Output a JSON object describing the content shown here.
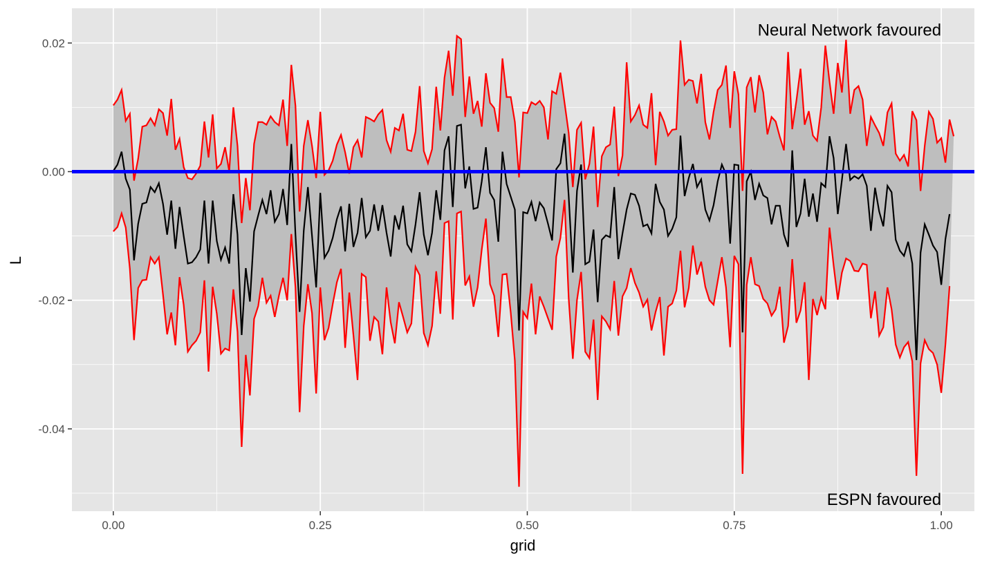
{
  "colors": {
    "panel_background": "#e5e5e5",
    "grid_major": "#ffffff",
    "ribbon_fill": "#bebebe",
    "bound_lines": "#ff0000",
    "estimate_line": "#000000",
    "reference_line": "#0000ff"
  },
  "chart_data": {
    "type": "line",
    "xlabel": "grid",
    "ylabel": "L",
    "xlim": [
      -0.05,
      1.04
    ],
    "ylim": [
      -0.0528,
      0.0254
    ],
    "x_ticks": [
      0,
      0.25,
      0.5,
      0.75,
      1
    ],
    "x_tick_labels": [
      "0.00",
      "0.25",
      "0.50",
      "0.75",
      "1.00"
    ],
    "y_ticks": [
      -0.04,
      -0.02,
      0,
      0.02
    ],
    "y_tick_labels": [
      "-0.04",
      "-0.02",
      "0.00",
      "0.02"
    ],
    "grid": true,
    "reference_line": {
      "y": 0
    },
    "annotations": [
      {
        "text": "Neural Network favoured",
        "x": 1.0,
        "y": 0.022
      },
      {
        "text": "ESPN favoured",
        "x": 1.0,
        "y": -0.051
      }
    ],
    "x_step": 0.005,
    "series": [
      {
        "role": "upper",
        "color": "#ff0000",
        "x_start": 0,
        "values": [
          0.0103,
          0.0112,
          0.0127,
          0.0079,
          0.009,
          -0.0014,
          0.002,
          0.007,
          0.0072,
          0.0083,
          0.0072,
          0.0097,
          0.0091,
          0.0056,
          0.0113,
          0.0034,
          0.0051,
          0.0007,
          -0.001,
          -0.0012,
          -0.0003,
          0.0009,
          0.0078,
          0.0022,
          0.0089,
          0.0005,
          0.0012,
          0.0038,
          0.0,
          0.01,
          0.004,
          -0.008,
          -0.001,
          -0.006,
          0.0043,
          0.0077,
          0.0077,
          0.0073,
          0.0086,
          0.0077,
          0.0072,
          0.0112,
          0.004,
          0.0166,
          0.0102,
          -0.0062,
          0.004,
          0.008,
          0.004,
          -0.001,
          0.0093,
          -0.0005,
          0.0002,
          0.0017,
          0.0042,
          0.0057,
          0.003,
          -0.0003,
          0.0038,
          0.0049,
          0.0022,
          0.0085,
          0.0082,
          0.0078,
          0.0089,
          0.0096,
          0.0049,
          0.0031,
          0.0068,
          0.0064,
          0.009,
          0.0034,
          0.0032,
          0.0062,
          0.0133,
          0.0032,
          0.0013,
          0.0035,
          0.0132,
          0.0064,
          0.0146,
          0.0188,
          0.0118,
          0.0211,
          0.0206,
          0.0085,
          0.0148,
          0.009,
          0.011,
          0.007,
          0.0153,
          0.0107,
          0.0099,
          0.0062,
          0.0176,
          0.0116,
          0.0116,
          0.0077,
          -0.0009,
          0.0092,
          0.0091,
          0.0108,
          0.0104,
          0.011,
          0.01,
          0.005,
          0.0125,
          0.0121,
          0.0154,
          0.0107,
          0.006,
          -0.0024,
          0.0065,
          0.0076,
          -0.0012,
          0.0012,
          0.007,
          -0.0055,
          0.0024,
          0.0038,
          0.0042,
          0.0101,
          -0.0007,
          0.0025,
          0.017,
          0.0078,
          0.0088,
          0.0103,
          0.0073,
          0.0068,
          0.0122,
          0.001,
          0.0093,
          0.0078,
          0.0056,
          0.0065,
          0.0066,
          0.0204,
          0.0135,
          0.0143,
          0.0141,
          0.0106,
          0.0152,
          0.0077,
          0.005,
          0.0093,
          0.0127,
          0.0135,
          0.0165,
          0.0068,
          0.0156,
          0.012,
          -0.003,
          0.0131,
          0.0147,
          0.0092,
          0.015,
          0.0123,
          0.0058,
          0.0085,
          0.0078,
          0.0054,
          0.0033,
          0.0186,
          0.0066,
          0.011,
          0.016,
          0.0073,
          0.0094,
          0.0056,
          0.0048,
          0.01,
          0.0196,
          0.014,
          0.009,
          0.0169,
          0.0123,
          0.0205,
          0.009,
          0.0127,
          0.0133,
          0.0112,
          0.004,
          0.0085,
          0.0072,
          0.006,
          0.004,
          0.0092,
          0.0106,
          0.0028,
          0.0017,
          0.0026,
          0.0008,
          0.0094,
          0.008,
          -0.003,
          0.004,
          0.0093,
          0.0082,
          0.0045,
          0.0052,
          0.0014,
          0.0081,
          0.0055
        ]
      },
      {
        "role": "estimate",
        "color": "#000000",
        "x_start": 0,
        "values": [
          0.0001,
          0.0011,
          0.0031,
          -0.0011,
          -0.0028,
          -0.0138,
          -0.0081,
          -0.005,
          -0.0048,
          -0.0024,
          -0.0032,
          -0.0018,
          -0.005,
          -0.0098,
          -0.0045,
          -0.012,
          -0.0055,
          -0.01,
          -0.0143,
          -0.0141,
          -0.0133,
          -0.0121,
          -0.0045,
          -0.0143,
          -0.0045,
          -0.0108,
          -0.0137,
          -0.0118,
          -0.0143,
          -0.0035,
          -0.0098,
          -0.0254,
          -0.015,
          -0.0202,
          -0.0093,
          -0.0068,
          -0.0044,
          -0.0066,
          -0.0029,
          -0.0078,
          -0.0066,
          -0.0027,
          -0.0083,
          0.0043,
          -0.0098,
          -0.0218,
          -0.0092,
          -0.0024,
          -0.01,
          -0.018,
          -0.0033,
          -0.0134,
          -0.0123,
          -0.0103,
          -0.0074,
          -0.0054,
          -0.0124,
          -0.005,
          -0.0117,
          -0.0095,
          -0.0041,
          -0.0102,
          -0.0092,
          -0.0051,
          -0.0092,
          -0.0052,
          -0.0095,
          -0.0132,
          -0.0068,
          -0.009,
          -0.0053,
          -0.0113,
          -0.0124,
          -0.0082,
          -0.0032,
          -0.0098,
          -0.013,
          -0.0095,
          -0.0029,
          -0.0075,
          0.0033,
          0.0055,
          -0.0055,
          0.0071,
          0.0073,
          -0.0026,
          0.0008,
          -0.0058,
          -0.0056,
          -0.0015,
          0.0038,
          -0.0033,
          -0.0044,
          -0.0109,
          0.0031,
          -0.0019,
          -0.0039,
          -0.0059,
          -0.0247,
          -0.0063,
          -0.0065,
          -0.0047,
          -0.0077,
          -0.0048,
          -0.0057,
          -0.0081,
          -0.0107,
          0.0004,
          0.0013,
          0.0059,
          -0.0038,
          -0.0157,
          -0.003,
          0.0011,
          -0.0144,
          -0.014,
          -0.009,
          -0.0203,
          -0.0106,
          -0.0099,
          -0.0102,
          -0.0024,
          -0.0136,
          -0.0096,
          -0.0059,
          -0.0034,
          -0.0036,
          -0.0053,
          -0.0085,
          -0.0082,
          -0.0096,
          -0.0019,
          -0.0047,
          -0.0059,
          -0.01,
          -0.0089,
          -0.0071,
          0.0056,
          -0.0038,
          -0.001,
          0.0012,
          -0.0024,
          -0.0012,
          -0.0059,
          -0.0076,
          -0.0052,
          -0.0015,
          0.0011,
          -0.0004,
          -0.0112,
          0.0011,
          0.001,
          -0.025,
          -0.0015,
          0.0,
          -0.0044,
          -0.0019,
          -0.0037,
          -0.0041,
          -0.0082,
          -0.0053,
          -0.0053,
          -0.0098,
          -0.0117,
          0.0033,
          -0.0086,
          -0.0065,
          -0.0011,
          -0.007,
          -0.0034,
          -0.0078,
          -0.0018,
          -0.0024,
          0.0055,
          0.0021,
          -0.0066,
          -0.0013,
          0.0043,
          -0.0013,
          -0.0007,
          -0.0011,
          -0.0004,
          -0.0022,
          -0.0092,
          -0.0025,
          -0.0062,
          -0.0085,
          -0.0022,
          -0.0032,
          -0.0106,
          -0.0123,
          -0.0131,
          -0.0109,
          -0.0143,
          -0.0293,
          -0.0126,
          -0.0082,
          -0.0098,
          -0.0115,
          -0.0125,
          -0.0176,
          -0.0105,
          -0.0066
        ]
      },
      {
        "role": "lower",
        "color": "#ff0000",
        "x_start": 0,
        "values": [
          -0.0093,
          -0.0086,
          -0.0065,
          -0.0087,
          -0.0151,
          -0.0262,
          -0.0181,
          -0.0169,
          -0.0168,
          -0.0133,
          -0.0143,
          -0.0133,
          -0.0191,
          -0.0253,
          -0.0219,
          -0.027,
          -0.0164,
          -0.0207,
          -0.028,
          -0.027,
          -0.0263,
          -0.025,
          -0.0169,
          -0.0311,
          -0.0179,
          -0.0221,
          -0.0283,
          -0.0275,
          -0.0278,
          -0.0183,
          -0.0249,
          -0.0428,
          -0.0285,
          -0.0348,
          -0.0229,
          -0.0209,
          -0.0165,
          -0.0204,
          -0.0193,
          -0.0226,
          -0.0193,
          -0.0165,
          -0.02,
          -0.0097,
          -0.018,
          -0.0374,
          -0.024,
          -0.0175,
          -0.022,
          -0.0345,
          -0.018,
          -0.0262,
          -0.0243,
          -0.0206,
          -0.0172,
          -0.0151,
          -0.0274,
          -0.0188,
          -0.0254,
          -0.0324,
          -0.0159,
          -0.0164,
          -0.0263,
          -0.0226,
          -0.0233,
          -0.0284,
          -0.018,
          -0.0234,
          -0.0267,
          -0.0203,
          -0.0226,
          -0.025,
          -0.0236,
          -0.0148,
          -0.0161,
          -0.0251,
          -0.027,
          -0.024,
          -0.0155,
          -0.0221,
          -0.008,
          -0.0077,
          -0.023,
          -0.0065,
          -0.0062,
          -0.0177,
          -0.0163,
          -0.021,
          -0.018,
          -0.0121,
          -0.0073,
          -0.0175,
          -0.0193,
          -0.0257,
          -0.016,
          -0.0159,
          -0.0219,
          -0.0294,
          -0.049,
          -0.0218,
          -0.0228,
          -0.0174,
          -0.0253,
          -0.0194,
          -0.021,
          -0.0228,
          -0.0246,
          -0.0132,
          -0.0103,
          -0.0044,
          -0.0197,
          -0.0291,
          -0.02,
          -0.0156,
          -0.028,
          -0.029,
          -0.023,
          -0.0355,
          -0.0225,
          -0.0233,
          -0.0245,
          -0.017,
          -0.0255,
          -0.0194,
          -0.0181,
          -0.015,
          -0.0173,
          -0.0188,
          -0.021,
          -0.0199,
          -0.0247,
          -0.0218,
          -0.0195,
          -0.0286,
          -0.021,
          -0.0205,
          -0.0185,
          -0.0123,
          -0.0211,
          -0.0181,
          -0.0115,
          -0.016,
          -0.014,
          -0.0179,
          -0.02,
          -0.0207,
          -0.017,
          -0.0133,
          -0.018,
          -0.0273,
          -0.0131,
          -0.0144,
          -0.047,
          -0.0176,
          -0.0133,
          -0.0175,
          -0.0178,
          -0.0198,
          -0.0205,
          -0.0224,
          -0.0214,
          -0.0179,
          -0.0266,
          -0.024,
          -0.0136,
          -0.0235,
          -0.0216,
          -0.0172,
          -0.0324,
          -0.0198,
          -0.0223,
          -0.0196,
          -0.0214,
          -0.0087,
          -0.0146,
          -0.0199,
          -0.0157,
          -0.0135,
          -0.0139,
          -0.0154,
          -0.0155,
          -0.0143,
          -0.0145,
          -0.0228,
          -0.0186,
          -0.0255,
          -0.0242,
          -0.018,
          -0.0214,
          -0.0269,
          -0.0289,
          -0.0273,
          -0.0265,
          -0.0295,
          -0.0473,
          -0.0298,
          -0.0262,
          -0.0276,
          -0.0282,
          -0.03,
          -0.0344,
          -0.0269,
          -0.0178
        ]
      }
    ]
  }
}
